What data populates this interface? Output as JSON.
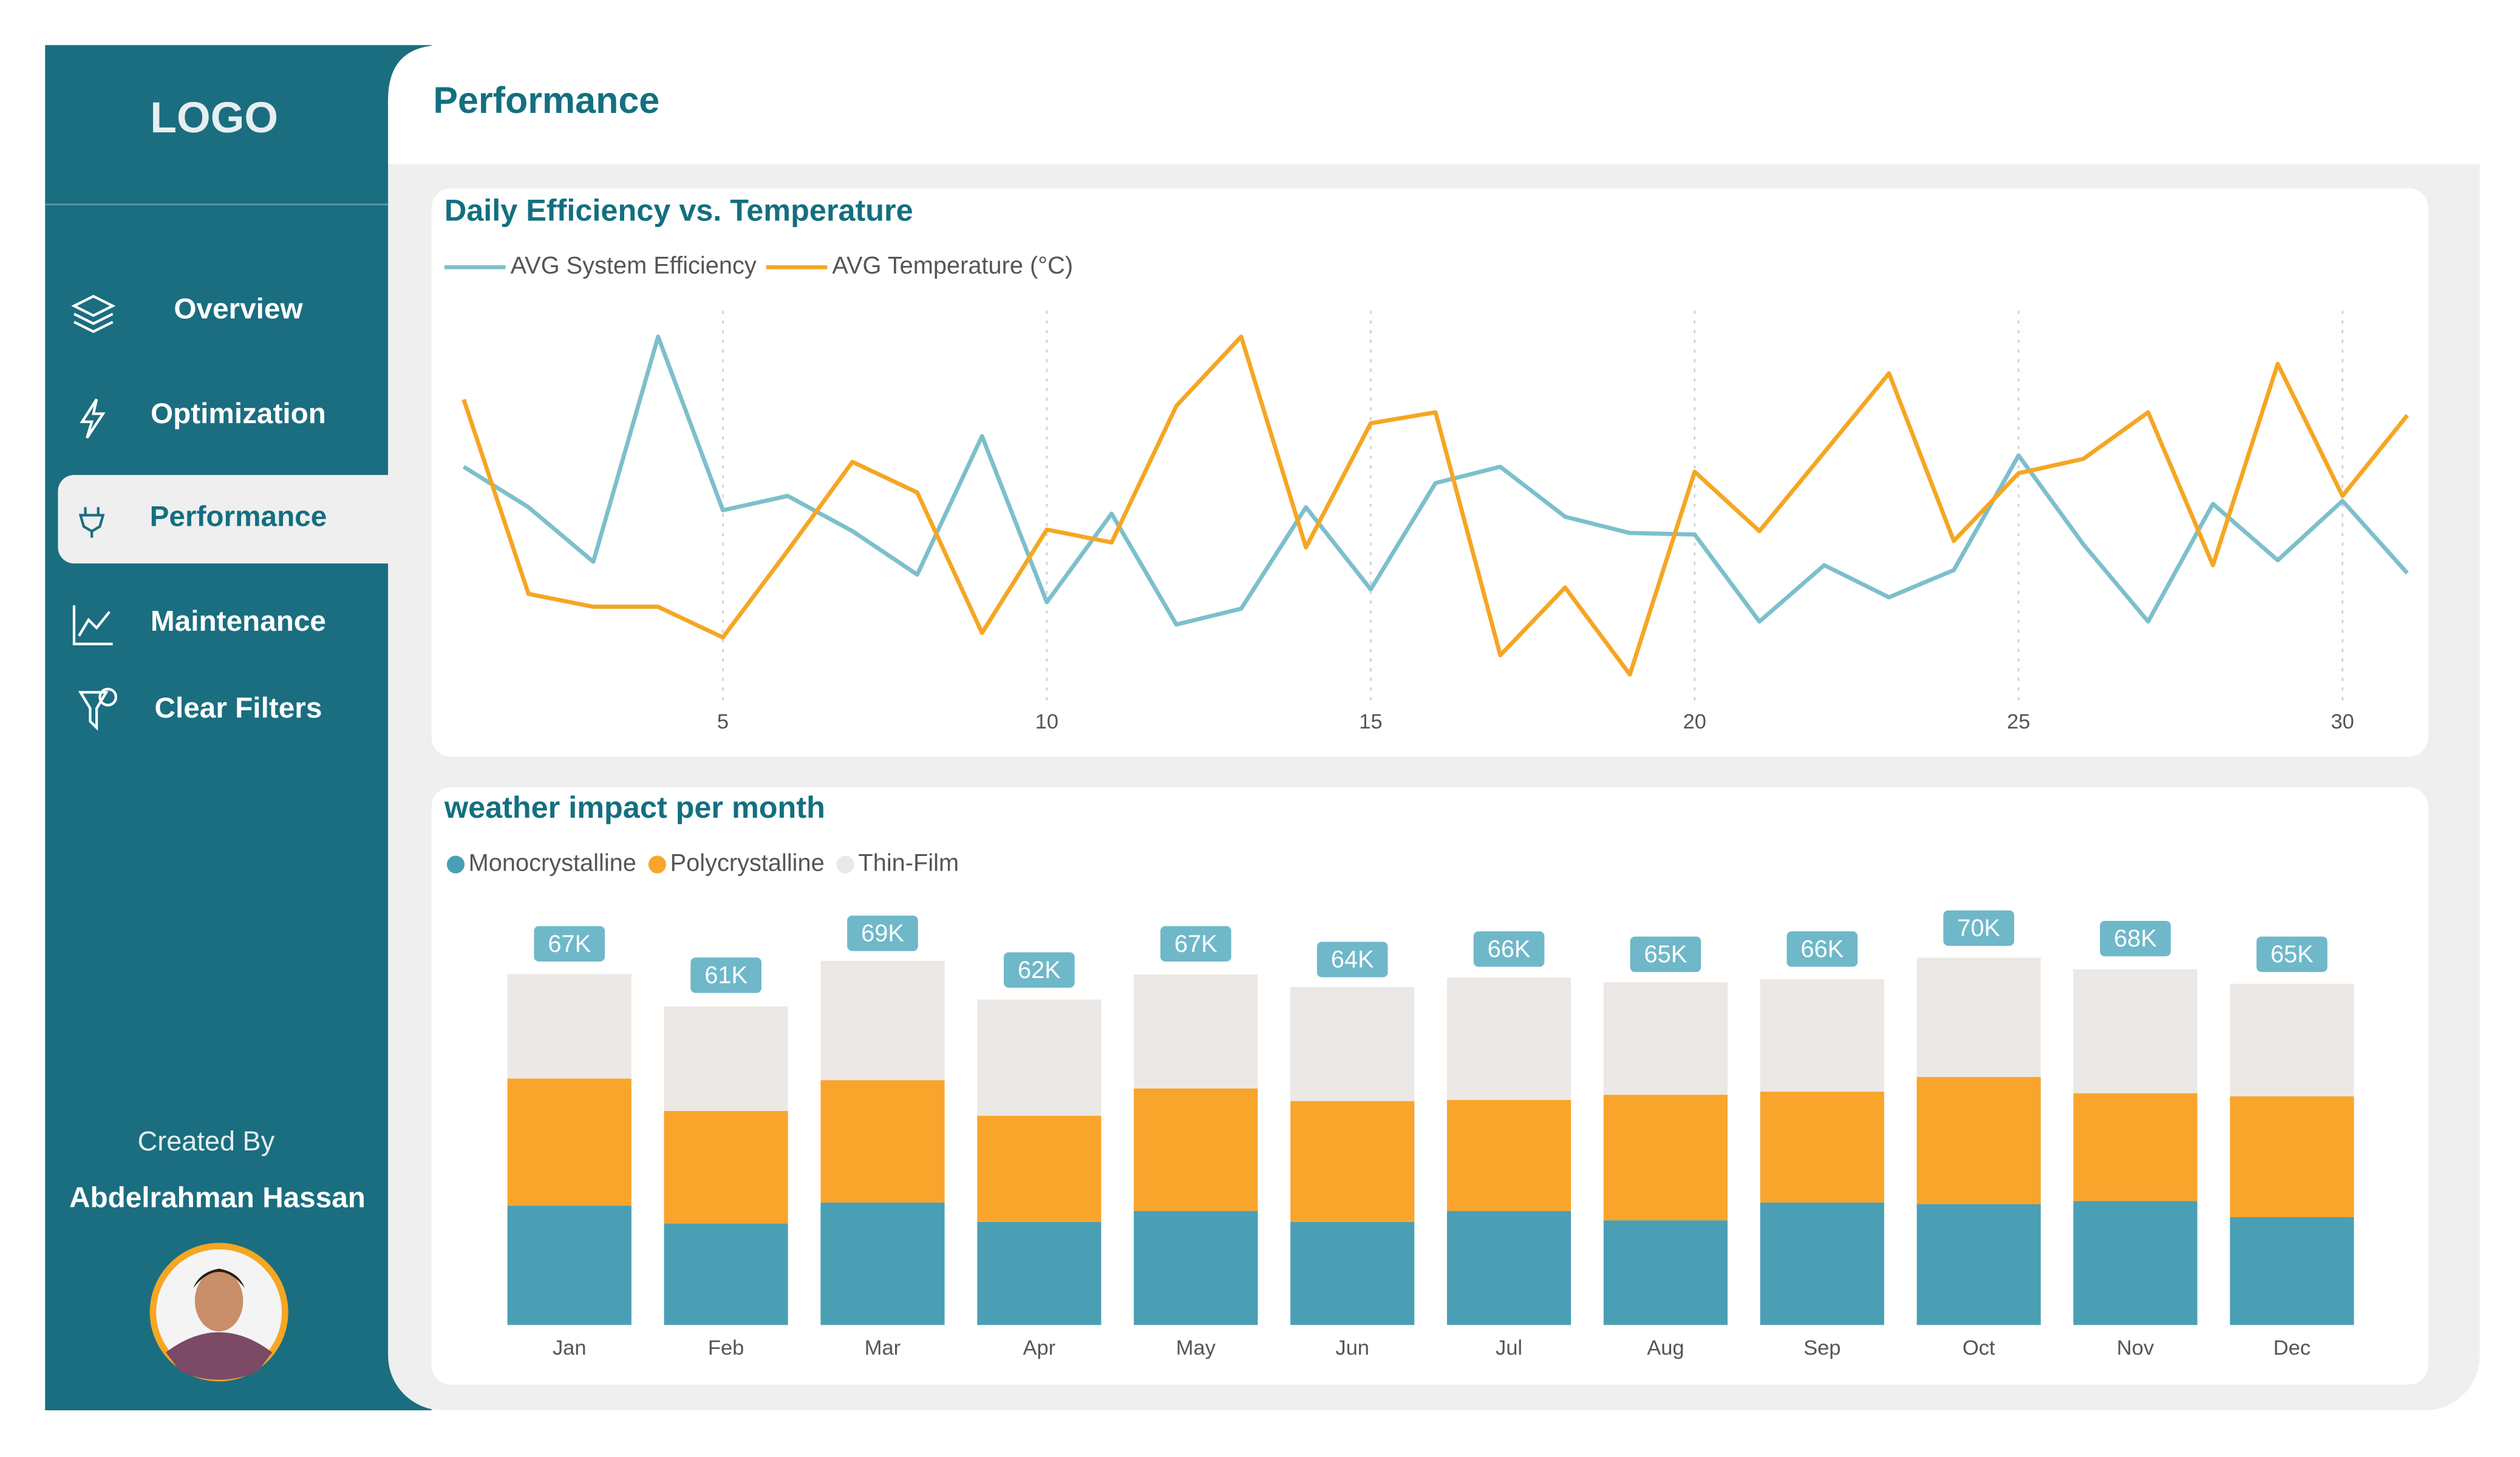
{
  "sidebar": {
    "logo": "LOGO",
    "nav": [
      "Overview",
      "Optimization",
      "Performance",
      "Maintenance",
      "Clear Filters"
    ],
    "credit_label": "Created By",
    "author": "Abdelrahman Hassan"
  },
  "header": {
    "title": "Performance"
  },
  "chart_data": [
    {
      "type": "line",
      "title": "Daily Efficiency vs. Temperature",
      "x": [
        1,
        2,
        3,
        4,
        5,
        6,
        7,
        8,
        9,
        10,
        11,
        12,
        13,
        14,
        15,
        16,
        17,
        18,
        19,
        20,
        21,
        22,
        23,
        24,
        25,
        26,
        27,
        28,
        29,
        30,
        31
      ],
      "xlim": [
        1,
        31
      ],
      "xticks": [
        5,
        10,
        15,
        20,
        25,
        30
      ],
      "ylim": [
        0,
        100
      ],
      "series": [
        {
          "name": "AVG System Efficiency",
          "color": "#7dbfcc",
          "values": [
            59.6,
            48.9,
            34.5,
            94.0,
            48.1,
            51.9,
            42.6,
            31.1,
            67.7,
            23.8,
            47.2,
            17.9,
            22.1,
            48.9,
            27.2,
            55.3,
            59.6,
            46.4,
            42.1,
            41.7,
            18.7,
            33.6,
            25.1,
            32.3,
            62.6,
            39.1,
            18.7,
            49.8,
            34.9,
            50.6,
            31.5
          ]
        },
        {
          "name": "AVG Temperature (°C)",
          "color": "#f5a623",
          "values": [
            77.4,
            26.0,
            22.6,
            22.6,
            14.5,
            37.4,
            60.9,
            52.8,
            15.7,
            43.0,
            39.6,
            75.7,
            94.0,
            38.3,
            71.1,
            74.0,
            9.8,
            27.7,
            4.7,
            58.3,
            42.6,
            63.4,
            84.3,
            40.0,
            57.9,
            61.7,
            74.0,
            33.6,
            86.8,
            51.9,
            73.2
          ]
        }
      ]
    },
    {
      "type": "stacked_bar",
      "title": "weather impact per month",
      "categories": [
        "Jan",
        "Feb",
        "Mar",
        "Apr",
        "May",
        "Jun",
        "Jul",
        "Aug",
        "Sep",
        "Oct",
        "Nov",
        "Dec"
      ],
      "ylim": [
        0,
        80000
      ],
      "series": [
        {
          "name": "Monocrystalline",
          "color": "#4a9fb5",
          "values": [
            22800,
            19400,
            23400,
            19700,
            21800,
            19700,
            21800,
            20000,
            23400,
            23100,
            23700,
            20600
          ]
        },
        {
          "name": "Polycrystalline",
          "color": "#f9a52c",
          "values": [
            24300,
            21500,
            23400,
            20300,
            23400,
            23100,
            21200,
            24000,
            21200,
            24300,
            20600,
            23100
          ]
        },
        {
          "name": "Thin-Film",
          "color": "#ece8e5",
          "values": [
            20000,
            20000,
            22800,
            22200,
            21800,
            21800,
            23400,
            21500,
            21500,
            22800,
            23700,
            21500
          ]
        }
      ],
      "totals": [
        67000,
        61000,
        69000,
        62000,
        67000,
        64000,
        66000,
        65000,
        66000,
        70000,
        68000,
        65000
      ],
      "total_labels": [
        "67K",
        "61K",
        "69K",
        "62K",
        "67K",
        "64K",
        "66K",
        "65K",
        "66K",
        "70K",
        "68K",
        "65K"
      ],
      "label_color": "#6fb8c9"
    }
  ]
}
